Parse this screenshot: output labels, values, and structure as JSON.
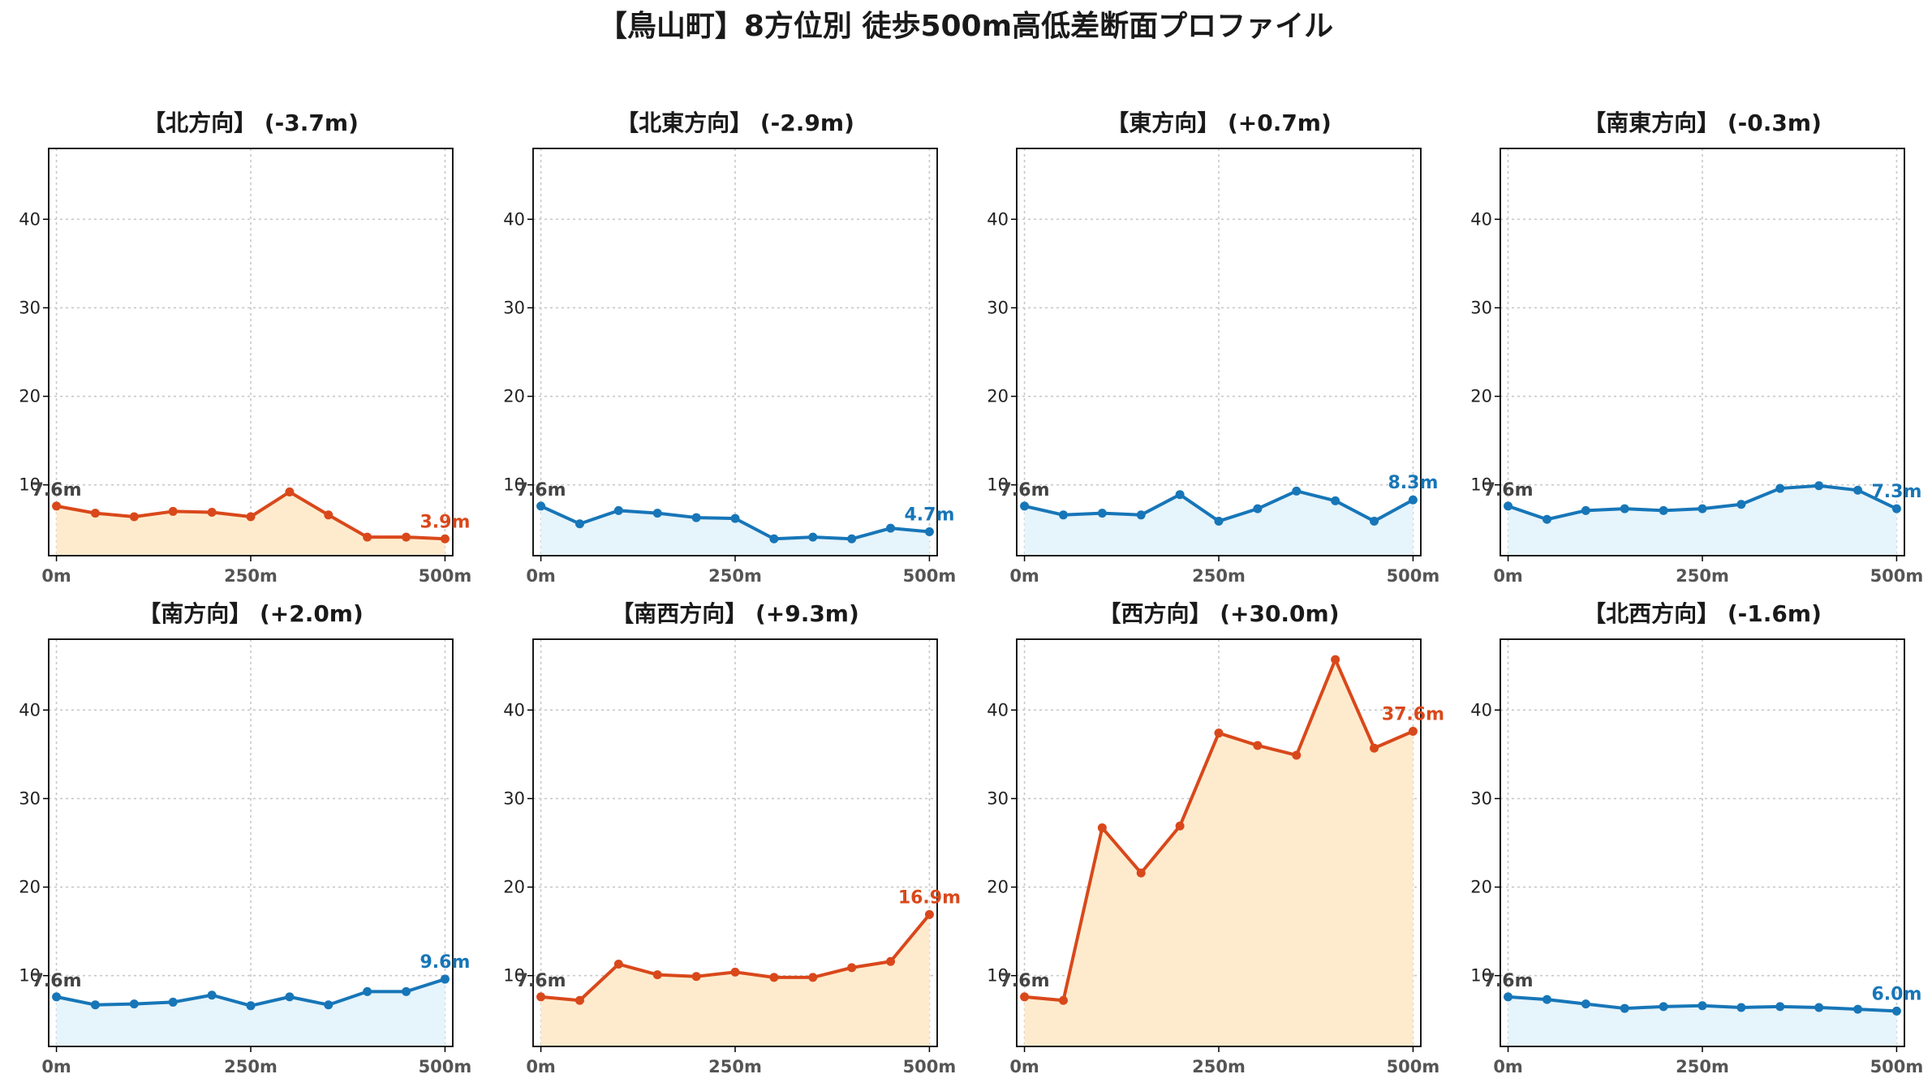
{
  "colors": {
    "rise_line": "#d9481b",
    "rise_fill": "#feebcd",
    "fall_line": "#1776b8",
    "fall_fill": "#e6f4fb",
    "start_label": "#444444"
  },
  "chart_data": {
    "title": "【鳥山町】8方位別 徒歩500m高低差断面プロファイル",
    "type": "line",
    "layout": "2x4 grid",
    "y_range": [
      2,
      48
    ],
    "x_range": [
      -10,
      510
    ],
    "y_ticks": [
      10,
      20,
      30,
      40
    ],
    "y_tick_labels": [
      "10",
      "20",
      "30",
      "40"
    ],
    "x_ticks": [
      0,
      250,
      500
    ],
    "x_tick_labels": [
      "0m",
      "250m",
      "500m"
    ],
    "grid": true,
    "x": [
      0,
      50,
      100,
      150,
      200,
      250,
      300,
      350,
      400,
      450,
      500
    ],
    "panels": [
      {
        "title": "【北方向】 (-3.7m)",
        "style": "rise",
        "values": [
          7.6,
          6.8,
          6.4,
          7.0,
          6.9,
          6.4,
          9.2,
          6.6,
          4.1,
          4.1,
          3.9
        ],
        "start_label": "7.6m",
        "end_label": "3.9m"
      },
      {
        "title": "【北東方向】 (-2.9m)",
        "style": "fall",
        "values": [
          7.6,
          5.6,
          7.1,
          6.8,
          6.3,
          6.2,
          3.9,
          4.1,
          3.9,
          5.1,
          4.7
        ],
        "start_label": "7.6m",
        "end_label": "4.7m"
      },
      {
        "title": "【東方向】 (+0.7m)",
        "style": "fall",
        "values": [
          7.6,
          6.6,
          6.8,
          6.6,
          8.9,
          5.9,
          7.3,
          9.3,
          8.2,
          5.9,
          8.3
        ],
        "start_label": "7.6m",
        "end_label": "8.3m"
      },
      {
        "title": "【南東方向】 (-0.3m)",
        "style": "fall",
        "values": [
          7.6,
          6.1,
          7.1,
          7.3,
          7.1,
          7.3,
          7.8,
          9.6,
          9.9,
          9.4,
          7.3
        ],
        "start_label": "7.6m",
        "end_label": "7.3m"
      },
      {
        "title": "【南方向】 (+2.0m)",
        "style": "fall",
        "values": [
          7.6,
          6.7,
          6.8,
          7.0,
          7.8,
          6.6,
          7.6,
          6.7,
          8.2,
          8.2,
          9.6
        ],
        "start_label": "7.6m",
        "end_label": "9.6m"
      },
      {
        "title": "【南西方向】 (+9.3m)",
        "style": "rise",
        "values": [
          7.6,
          7.2,
          11.3,
          10.1,
          9.9,
          10.4,
          9.8,
          9.8,
          10.9,
          11.6,
          16.9
        ],
        "start_label": "7.6m",
        "end_label": "16.9m"
      },
      {
        "title": "【西方向】 (+30.0m)",
        "style": "rise",
        "values": [
          7.6,
          7.2,
          26.7,
          21.6,
          26.9,
          37.4,
          36.0,
          34.9,
          45.7,
          35.7,
          37.6
        ],
        "start_label": "7.6m",
        "end_label": "37.6m"
      },
      {
        "title": "【北西方向】 (-1.6m)",
        "style": "fall",
        "values": [
          7.6,
          7.3,
          6.8,
          6.3,
          6.5,
          6.6,
          6.4,
          6.5,
          6.4,
          6.2,
          6.0
        ],
        "start_label": "7.6m",
        "end_label": "6.0m"
      }
    ]
  }
}
